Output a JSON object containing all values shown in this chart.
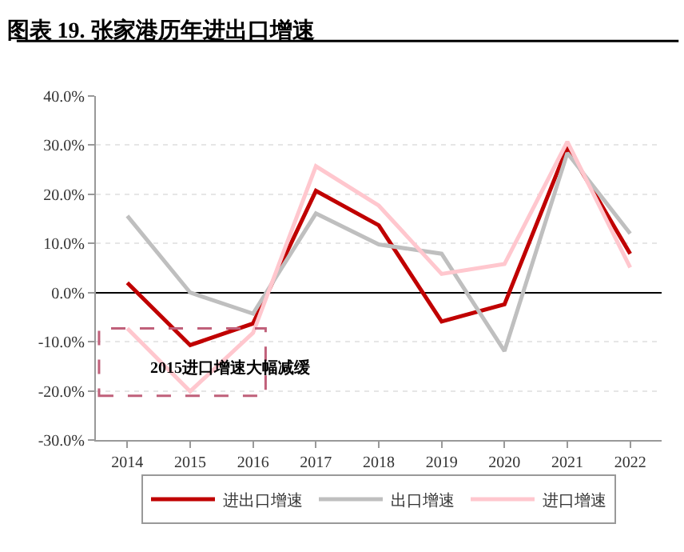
{
  "chart_data": {
    "type": "line",
    "title": "图表 19. 张家港历年进出口增速",
    "categories": [
      "2014",
      "2015",
      "2016",
      "2017",
      "2018",
      "2019",
      "2020",
      "2021",
      "2022"
    ],
    "series": [
      {
        "name": "进出口增速",
        "color": "#c00000",
        "values": [
          2.0,
          -10.7,
          -6.3,
          20.7,
          13.7,
          -5.9,
          -2.4,
          29.6,
          7.9
        ]
      },
      {
        "name": "出口增速",
        "color": "#bfbfbf",
        "values": [
          15.6,
          0.0,
          -4.3,
          16.1,
          9.8,
          7.9,
          -11.9,
          28.4,
          12.0
        ]
      },
      {
        "name": "进口增速",
        "color": "#ffc7ce",
        "values": [
          -7.3,
          -20.1,
          -8.2,
          25.7,
          17.7,
          3.8,
          5.8,
          30.7,
          5.1
        ]
      }
    ],
    "ylim": [
      -30,
      40
    ],
    "yticks": [
      {
        "value": -30,
        "label": "-30.0%"
      },
      {
        "value": -20,
        "label": "-20.0%"
      },
      {
        "value": -10,
        "label": "-10.0%"
      },
      {
        "value": 0,
        "label": "0.0%"
      },
      {
        "value": 10,
        "label": "10.0%"
      },
      {
        "value": 20,
        "label": "20.0%"
      },
      {
        "value": 30,
        "label": "30.0%"
      },
      {
        "value": 40,
        "label": "40.0%"
      }
    ],
    "annotations": [
      "2015进口增速大幅减缓"
    ],
    "grid": "y",
    "legend": "bottom",
    "marker": "none",
    "line_style": "solid"
  }
}
